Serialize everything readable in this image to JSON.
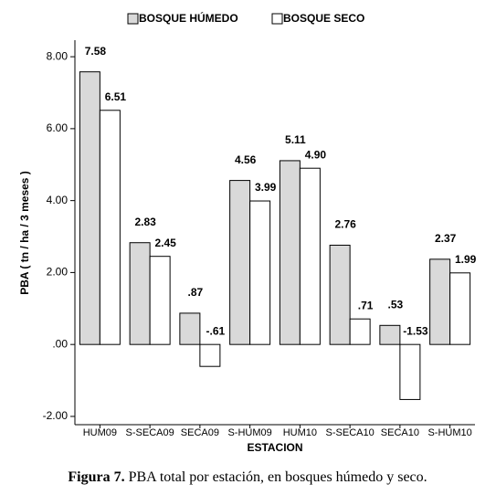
{
  "chart_data": {
    "type": "bar",
    "y_label": "PBA ( tn / ha / 3 meses )",
    "x_label": "ESTACION",
    "caption_label": "Figura 7.",
    "caption_text": "PBA total por estación, en bosques húmedo y seco.",
    "categories": [
      "HUM09",
      "S-SECA09",
      "SECA09",
      "S-HUM09",
      "HUM10",
      "S-SECA10",
      "SECA10",
      "S-HUM10"
    ],
    "series": [
      {
        "name": "BOSQUE HÚMEDO",
        "color": "#d9d9d9",
        "values": [
          7.58,
          2.83,
          0.87,
          4.56,
          5.11,
          2.76,
          0.53,
          2.37
        ],
        "value_labels": [
          "7.58",
          "2.83",
          ".87",
          "4.56",
          "5.11",
          "2.76",
          ".53",
          "2.37"
        ]
      },
      {
        "name": "BOSQUE SECO",
        "color": "#ffffff",
        "values": [
          6.51,
          2.45,
          -0.61,
          3.99,
          4.9,
          0.71,
          -1.53,
          1.99
        ],
        "value_labels": [
          "6.51",
          "2.45",
          "-.61",
          "3.99",
          "4.90",
          ".71",
          "-1.53",
          "1.99"
        ]
      }
    ],
    "ylim": [
      -2.23,
      8.46
    ],
    "yticks": [
      {
        "value": -2,
        "label": "-2.00"
      },
      {
        "value": 0,
        "label": ".00"
      },
      {
        "value": 2,
        "label": "2.00"
      },
      {
        "value": 4,
        "label": "4.00"
      },
      {
        "value": 6,
        "label": "6.00"
      },
      {
        "value": 8,
        "label": "8.00"
      }
    ],
    "legend": "top",
    "grid": false
  }
}
